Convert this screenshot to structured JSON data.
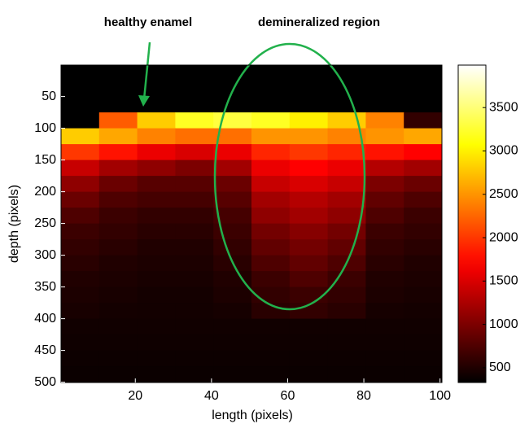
{
  "chart_data": {
    "type": "heatmap",
    "colormap": "hot",
    "xlabel": "length (pixels)",
    "ylabel": "depth (pixels)",
    "annotations": [
      "healthy enamel",
      "demineralized region"
    ],
    "x": [
      5.5,
      15.5,
      25.5,
      35.5,
      45.5,
      55.5,
      65.5,
      75.5,
      85.5,
      95.5
    ],
    "y": [
      12.5,
      37.5,
      62.5,
      87.5,
      112.5,
      137.5,
      162.5,
      187.5,
      212.5,
      237.5,
      262.5,
      287.5,
      312.5,
      337.5,
      362.5,
      387.5,
      412.5,
      437.5,
      462.5,
      487.5
    ],
    "z": [
      [
        330,
        330,
        330,
        330,
        330,
        330,
        330,
        330,
        330,
        330
      ],
      [
        330,
        330,
        330,
        330,
        330,
        330,
        330,
        330,
        330,
        330
      ],
      [
        330,
        330,
        330,
        330,
        330,
        330,
        330,
        330,
        330,
        330
      ],
      [
        330,
        2200,
        2800,
        3200,
        3300,
        3200,
        3000,
        2800,
        2400,
        600
      ],
      [
        2800,
        2600,
        2400,
        2300,
        2300,
        2500,
        2500,
        2400,
        2500,
        2600
      ],
      [
        2000,
        1800,
        1600,
        1500,
        1600,
        1900,
        2000,
        1900,
        1800,
        1700
      ],
      [
        1400,
        1200,
        1100,
        1000,
        1200,
        1600,
        1700,
        1600,
        1300,
        1200
      ],
      [
        1100,
        900,
        800,
        800,
        900,
        1400,
        1500,
        1400,
        1000,
        900
      ],
      [
        900,
        750,
        700,
        700,
        800,
        1200,
        1300,
        1200,
        850,
        750
      ],
      [
        750,
        650,
        600,
        600,
        700,
        1100,
        1200,
        1100,
        750,
        650
      ],
      [
        650,
        600,
        550,
        550,
        650,
        950,
        1050,
        950,
        650,
        600
      ],
      [
        600,
        550,
        500,
        500,
        600,
        850,
        950,
        850,
        600,
        550
      ],
      [
        550,
        500,
        480,
        480,
        550,
        750,
        850,
        750,
        550,
        500
      ],
      [
        500,
        480,
        460,
        460,
        500,
        650,
        750,
        650,
        500,
        480
      ],
      [
        480,
        460,
        440,
        440,
        480,
        600,
        650,
        600,
        480,
        460
      ],
      [
        460,
        440,
        430,
        430,
        450,
        550,
        600,
        550,
        450,
        440
      ],
      [
        420,
        420,
        420,
        420,
        420,
        420,
        420,
        420,
        420,
        420
      ],
      [
        410,
        410,
        410,
        410,
        410,
        410,
        410,
        410,
        410,
        410
      ],
      [
        400,
        400,
        400,
        400,
        400,
        400,
        400,
        400,
        400,
        400
      ],
      [
        390,
        390,
        390,
        390,
        390,
        390,
        390,
        390,
        390,
        390
      ]
    ],
    "xlim": [
      0.5,
      100.5
    ],
    "xticks": [
      20,
      40,
      60,
      80,
      100
    ],
    "ylim": [
      0.5,
      500.5
    ],
    "yticks": [
      50,
      100,
      150,
      200,
      250,
      300,
      350,
      400,
      450,
      500
    ],
    "y_reversed": true,
    "clim": [
      330,
      3990
    ],
    "cticks": [
      500,
      1000,
      1500,
      2000,
      2500,
      3000,
      3500
    ]
  }
}
